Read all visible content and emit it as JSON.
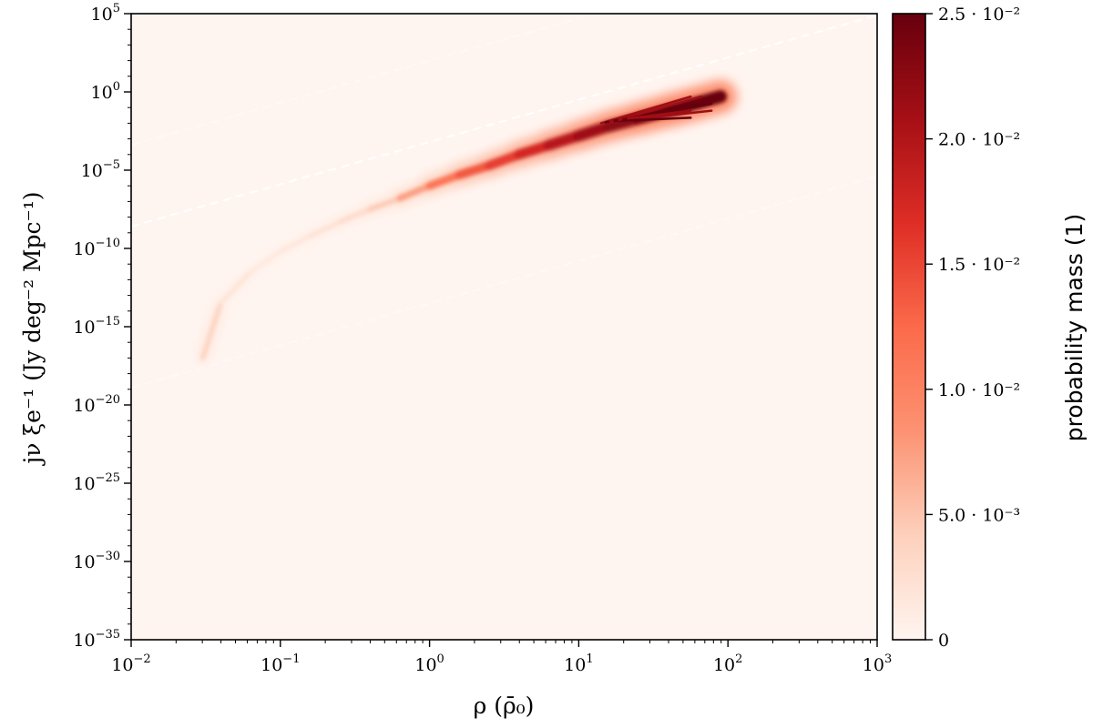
{
  "chart_data": {
    "type": "heatmap",
    "x_scale": "log",
    "y_scale": "log",
    "xlim": [
      0.01,
      1000
    ],
    "ylim": [
      1e-35,
      100000
    ],
    "x_ticks": [
      {
        "base": "10",
        "exp": "−2"
      },
      {
        "base": "10",
        "exp": "−1"
      },
      {
        "base": "10",
        "exp": "0"
      },
      {
        "base": "10",
        "exp": "1"
      },
      {
        "base": "10",
        "exp": "2"
      },
      {
        "base": "10",
        "exp": "3"
      }
    ],
    "y_ticks": [
      {
        "base": "10",
        "exp": "−35"
      },
      {
        "base": "10",
        "exp": "−30"
      },
      {
        "base": "10",
        "exp": "−25"
      },
      {
        "base": "10",
        "exp": "−20"
      },
      {
        "base": "10",
        "exp": "−15"
      },
      {
        "base": "10",
        "exp": "−10"
      },
      {
        "base": "10",
        "exp": "−5"
      },
      {
        "base": "10",
        "exp": "0"
      },
      {
        "base": "10",
        "exp": "5"
      }
    ],
    "xlabel": "ρ  (ρ̄₀)",
    "ylabel": "jν ξe⁻¹  (Jy deg⁻² Mpc⁻¹)",
    "colorbar": {
      "label": "probability mass (1)",
      "range": [
        0,
        0.025
      ],
      "colormap": [
        "#fff5f0",
        "#fdd0bc",
        "#fc9272",
        "#fb6a4a",
        "#de2d26",
        "#a50f15",
        "#67000d"
      ],
      "ticks": [
        "0",
        "5.0 · 10⁻³",
        "1.0 · 10⁻²",
        "1.5 · 10⁻²",
        "2.0 · 10⁻²",
        "2.5 · 10⁻²"
      ]
    },
    "reference_lines": [
      {
        "style": "dashed",
        "slope": 2.7,
        "log10_y_at_log10_x0": -3.2,
        "opacity": 0.9
      },
      {
        "style": "dashed",
        "slope": 2.7,
        "log10_y_at_log10_x0": 2.0,
        "opacity": 0.35
      },
      {
        "style": "dashed",
        "slope": 2.7,
        "log10_y_at_log10_x0": -13.5,
        "opacity": 0.35
      }
    ],
    "density_ridge": {
      "log10_x": [
        -1.52,
        -1.4,
        -1.2,
        -1.0,
        -0.8,
        -0.6,
        -0.4,
        -0.2,
        0.0,
        0.2,
        0.4,
        0.6,
        0.8,
        1.0,
        1.2,
        1.4,
        1.6,
        1.8,
        1.95
      ],
      "log10_y": [
        -17.0,
        -13.5,
        -11.5,
        -10.2,
        -9.2,
        -8.3,
        -7.5,
        -6.8,
        -6.0,
        -5.3,
        -4.7,
        -4.0,
        -3.4,
        -2.8,
        -2.2,
        -1.7,
        -1.2,
        -0.7,
        -0.3
      ],
      "weight": [
        0.15,
        0.08,
        0.06,
        0.07,
        0.09,
        0.12,
        0.18,
        0.3,
        0.45,
        0.55,
        0.62,
        0.7,
        0.78,
        0.85,
        0.9,
        0.95,
        1.0,
        1.0,
        0.8
      ]
    }
  }
}
